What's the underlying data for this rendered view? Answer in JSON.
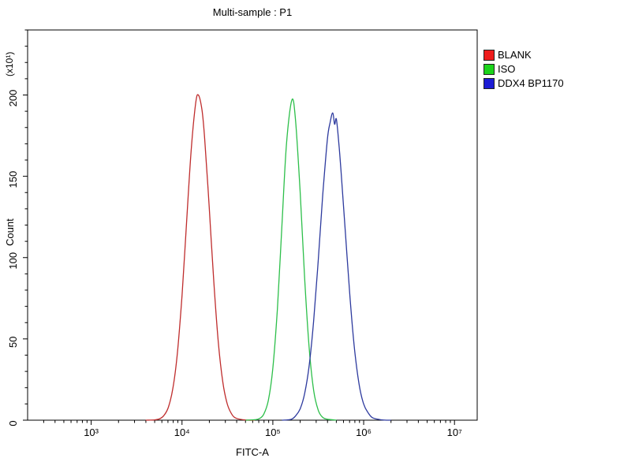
{
  "title": "Multi-sample : P1",
  "axes": {
    "x": {
      "label": "FITC-A",
      "scale": "log10",
      "tick_labels": [
        "10³",
        "10⁴",
        "10⁵",
        "10⁶",
        "10⁷"
      ],
      "tick_exponents": [
        3,
        4,
        5,
        6,
        7
      ],
      "log_min": 2.3,
      "log_max": 7.25
    },
    "y": {
      "label": "Count",
      "unit_label": "(x10¹)",
      "tick_values": [
        0,
        50,
        100,
        150,
        200
      ],
      "minor_step": 10,
      "min": 0,
      "max": 240
    }
  },
  "legend": {
    "items": [
      {
        "label": "BLANK",
        "color": "#ee1c1c"
      },
      {
        "label": "ISO",
        "color": "#1cd41c"
      },
      {
        "label": "DDX4 BP1170",
        "color": "#1c1cd4"
      }
    ]
  },
  "chart_data": {
    "type": "line",
    "title": "Multi-sample : P1",
    "xlabel": "FITC-A",
    "ylabel": "Count (x10¹)",
    "x_scale": "log10",
    "xlim_log10": [
      2.3,
      7.25
    ],
    "ylim": [
      0,
      240
    ],
    "grid": false,
    "legend_position": "top-right-outside",
    "series": [
      {
        "name": "BLANK",
        "color": "#bf2d2d",
        "peak": {
          "x_log10": 4.18,
          "x": 15000,
          "y": 200
        },
        "points": [
          [
            3.6,
            0
          ],
          [
            3.7,
            0.2
          ],
          [
            3.75,
            0.8
          ],
          [
            3.8,
            2.8
          ],
          [
            3.85,
            8.0
          ],
          [
            3.9,
            19.7
          ],
          [
            3.95,
            41.8
          ],
          [
            4.0,
            76.7
          ],
          [
            4.05,
            121.3
          ],
          [
            4.1,
            165.5
          ],
          [
            4.15,
            194.7
          ],
          [
            4.18,
            200
          ],
          [
            4.22,
            190.8
          ],
          [
            4.25,
            173.0
          ],
          [
            4.3,
            130.6
          ],
          [
            4.35,
            85.0
          ],
          [
            4.4,
            47.8
          ],
          [
            4.45,
            23.1
          ],
          [
            4.5,
            9.7
          ],
          [
            4.55,
            3.5
          ],
          [
            4.6,
            1.1
          ],
          [
            4.7,
            0.1
          ],
          [
            4.8,
            0
          ]
        ]
      },
      {
        "name": "ISO",
        "color": "#2dbf4a",
        "peak": {
          "x_log10": 5.21,
          "x": 162000,
          "y": 197
        },
        "points": [
          [
            4.7,
            0
          ],
          [
            4.8,
            0.3
          ],
          [
            4.85,
            0.9
          ],
          [
            4.9,
            3.7
          ],
          [
            4.95,
            12.1
          ],
          [
            5.0,
            31.9
          ],
          [
            5.05,
            68.3
          ],
          [
            5.1,
            119.5
          ],
          [
            5.15,
            169.8
          ],
          [
            5.21,
            197
          ],
          [
            5.25,
            184.4
          ],
          [
            5.3,
            140.9
          ],
          [
            5.35,
            87.6
          ],
          [
            5.4,
            44.3
          ],
          [
            5.45,
            18.2
          ],
          [
            5.5,
            6.1
          ],
          [
            5.55,
            1.7
          ],
          [
            5.6,
            0.6
          ],
          [
            5.7,
            0
          ]
        ]
      },
      {
        "name": "DDX4 BP1170",
        "color": "#2d3a9e",
        "peak": {
          "x_log10": 5.66,
          "x": 457000,
          "y": 189
        },
        "points": [
          [
            5.1,
            0
          ],
          [
            5.2,
            0.5
          ],
          [
            5.25,
            2.6
          ],
          [
            5.3,
            6.9
          ],
          [
            5.35,
            16.3
          ],
          [
            5.4,
            33.7
          ],
          [
            5.45,
            61.4
          ],
          [
            5.5,
            98.4
          ],
          [
            5.55,
            138.8
          ],
          [
            5.6,
            172.4
          ],
          [
            5.63,
            183
          ],
          [
            5.66,
            189
          ],
          [
            5.68,
            182
          ],
          [
            5.7,
            185
          ],
          [
            5.73,
            168
          ],
          [
            5.75,
            153.7
          ],
          [
            5.8,
            114.6
          ],
          [
            5.85,
            75.2
          ],
          [
            5.9,
            43.5
          ],
          [
            5.95,
            22.0
          ],
          [
            6.0,
            9.9
          ],
          [
            6.05,
            4.5
          ],
          [
            6.1,
            1.4
          ],
          [
            6.2,
            0.2
          ],
          [
            6.3,
            0
          ]
        ]
      }
    ]
  }
}
